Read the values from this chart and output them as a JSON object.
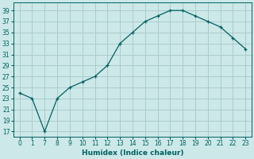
{
  "xlabel": "Humidex (Indice chaleur)",
  "bg_color": "#cce8e8",
  "grid_color": "#aacccc",
  "line_color": "#006060",
  "x_labels": [
    "0",
    "1",
    "7",
    "8",
    "9",
    "10",
    "11",
    "12",
    "13",
    "14",
    "15",
    "16",
    "17",
    "18",
    "19",
    "20",
    "21",
    "22",
    "23"
  ],
  "y_values": [
    24,
    23,
    17,
    23,
    25,
    26,
    27,
    29,
    33,
    35,
    37,
    38,
    39,
    39,
    38,
    37,
    36,
    34,
    32
  ],
  "yticks": [
    17,
    19,
    21,
    23,
    25,
    27,
    29,
    31,
    33,
    35,
    37,
    39
  ],
  "ylim": [
    16.0,
    40.5
  ],
  "xlabel_fontsize": 6.5,
  "ylabel_fontsize": 6,
  "tick_fontsize": 5.5
}
